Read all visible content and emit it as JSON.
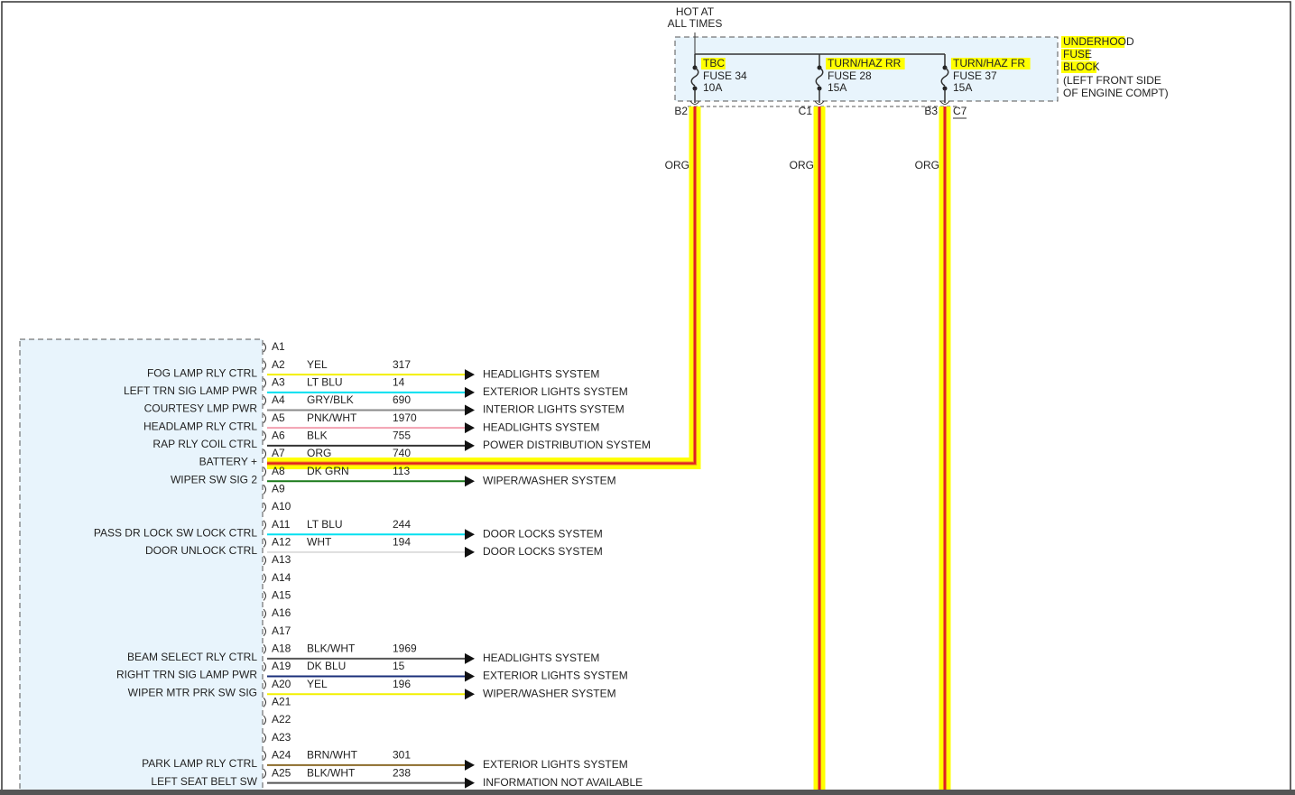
{
  "power": {
    "title": [
      "HOT AT",
      "ALL TIMES"
    ]
  },
  "fuse_block": {
    "label": [
      "UNDERHOOD",
      "FUSE",
      "BLOCK"
    ],
    "location": [
      "(LEFT FRONT SIDE",
      "OF ENGINE COMPT)"
    ],
    "fuses": [
      {
        "name": "TBC",
        "fuse": "FUSE 34",
        "amps": "10A",
        "connectors": [
          "B2"
        ],
        "wire": "ORG"
      },
      {
        "name": "TURN/HAZ RR",
        "fuse": "FUSE 28",
        "amps": "15A",
        "connectors": [
          "C1"
        ],
        "wire": "ORG"
      },
      {
        "name": "TURN/HAZ FR",
        "fuse": "FUSE 37",
        "amps": "15A",
        "connectors": [
          "B3",
          "C7"
        ],
        "wire": "ORG"
      }
    ]
  },
  "module": {
    "pins": [
      {
        "pin": "A1"
      },
      {
        "pin": "A2",
        "function": "FOG LAMP RLY CTRL",
        "wire": "YEL",
        "circuit": "317",
        "to": "HEADLIGHTS SYSTEM",
        "color": "#f2f000"
      },
      {
        "pin": "A3",
        "function": "LEFT TRN SIG LAMP PWR",
        "wire": "LT BLU",
        "circuit": "14",
        "to": "EXTERIOR LIGHTS SYSTEM",
        "color": "#00e0f0"
      },
      {
        "pin": "A4",
        "function": "COURTESY LMP PWR",
        "wire": "GRY/BLK",
        "circuit": "690",
        "to": "INTERIOR LIGHTS SYSTEM",
        "color": "#8a8a8a"
      },
      {
        "pin": "A5",
        "function": "HEADLAMP RLY CTRL",
        "wire": "PNK/WHT",
        "circuit": "1970",
        "to": "HEADLIGHTS SYSTEM",
        "color": "#f2a0b0"
      },
      {
        "pin": "A6",
        "function": "RAP RLY COIL CTRL",
        "wire": "BLK",
        "circuit": "755",
        "to": "POWER DISTRIBUTION SYSTEM",
        "color": "#333333"
      },
      {
        "pin": "A7",
        "function": "BATTERY +",
        "wire": "ORG",
        "circuit": "740"
      },
      {
        "pin": "A8",
        "function": "WIPER SW SIG 2",
        "wire": "DK GRN",
        "circuit": "113",
        "to": "WIPER/WASHER SYSTEM",
        "color": "#1a7a1a"
      },
      {
        "pin": "A9"
      },
      {
        "pin": "A10"
      },
      {
        "pin": "A11",
        "function": "PASS DR LOCK SW LOCK CTRL",
        "wire": "LT BLU",
        "circuit": "244",
        "to": "DOOR LOCKS SYSTEM",
        "color": "#00e0f0"
      },
      {
        "pin": "A12",
        "function": "DOOR UNLOCK CTRL",
        "wire": "WHT",
        "circuit": "194",
        "to": "DOOR LOCKS SYSTEM",
        "color": "#dddddd"
      },
      {
        "pin": "A13"
      },
      {
        "pin": "A14"
      },
      {
        "pin": "A15"
      },
      {
        "pin": "A16"
      },
      {
        "pin": "A17"
      },
      {
        "pin": "A18",
        "function": "BEAM SELECT RLY CTRL",
        "wire": "BLK/WHT",
        "circuit": "1969",
        "to": "HEADLIGHTS SYSTEM",
        "color": "#555555"
      },
      {
        "pin": "A19",
        "function": "RIGHT TRN SIG LAMP PWR",
        "wire": "DK BLU",
        "circuit": "15",
        "to": "EXTERIOR LIGHTS SYSTEM",
        "color": "#1a2f7a"
      },
      {
        "pin": "A20",
        "function": "WIPER MTR PRK SW SIG",
        "wire": "YEL",
        "circuit": "196",
        "to": "WIPER/WASHER SYSTEM",
        "color": "#f2f000"
      },
      {
        "pin": "A21"
      },
      {
        "pin": "A22"
      },
      {
        "pin": "A23"
      },
      {
        "pin": "A24",
        "function": "PARK LAMP RLY CTRL",
        "wire": "BRN/WHT",
        "circuit": "301",
        "to": "EXTERIOR LIGHTS SYSTEM",
        "color": "#8b6b2a"
      },
      {
        "pin": "A25",
        "function": "LEFT SEAT BELT SW",
        "wire": "BLK/WHT",
        "circuit": "238",
        "to": "INFORMATION NOT AVAILABLE",
        "color": "#555555"
      }
    ]
  }
}
